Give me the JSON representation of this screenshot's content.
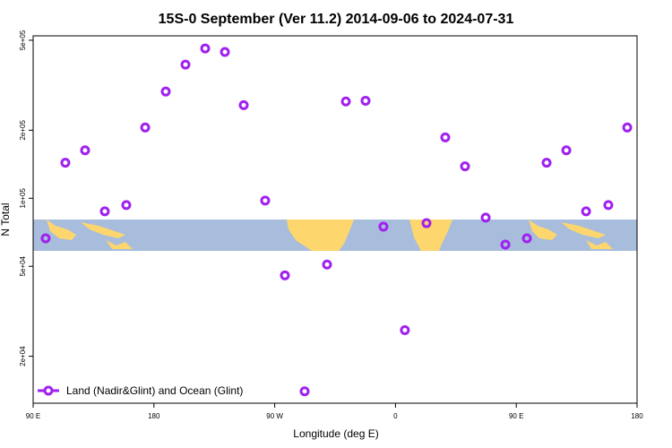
{
  "chart_data": {
    "type": "scatter",
    "title": "15S-0 September (Ver 11.2)   2014-09-06 to 2024-07-31",
    "x_label": "Longitude (deg E)",
    "y_label": "N Total",
    "log_y": true,
    "legend_position": "bottom-left",
    "series": [
      {
        "name": "Land (Nadir&Glint) and Ocean (Glint)",
        "color": "#a020f0",
        "x": [
          99.3,
          114,
          128.7,
          143.4,
          159.4,
          173.5,
          188.8,
          203.5,
          218.2,
          232.9,
          246.9,
          262.9,
          277.6,
          292.3,
          309,
          323,
          337.7,
          351,
          367,
          383.1,
          397.1,
          411.8,
          427.2,
          441.9,
          457.9,
          472.6,
          487.3,
          502,
          518.6,
          532.7
        ],
        "values": [
          66500,
          143600,
          163000,
          87500,
          93300,
          205600,
          296500,
          390000,
          460000,
          443700,
          258200,
          97700,
          45600,
          14000,
          50900,
          268000,
          270000,
          74900,
          26100,
          77600,
          185800,
          138400,
          82100,
          62400,
          66500,
          143600,
          163000,
          87500,
          93300,
          205600
        ]
      }
    ],
    "xlim": [
      90,
      540
    ],
    "xticks": [
      {
        "value": 90,
        "label": "90 E"
      },
      180,
      {
        "value": 270,
        "label": "90 W"
      },
      {
        "value": 360,
        "label": "0"
      },
      {
        "value": 450,
        "label": "90 E"
      },
      {
        "value": 540,
        "label": "180"
      }
    ],
    "ylim": [
      12400,
      523000
    ],
    "yticks": [
      {
        "value": 500000,
        "label": "5e+05"
      },
      {
        "value": 200000,
        "label": "2e+05"
      },
      {
        "value": 100000,
        "label": "1e+05"
      },
      {
        "value": 50000,
        "label": "5e+04"
      },
      {
        "value": 20000,
        "label": "2e+04"
      }
    ]
  }
}
